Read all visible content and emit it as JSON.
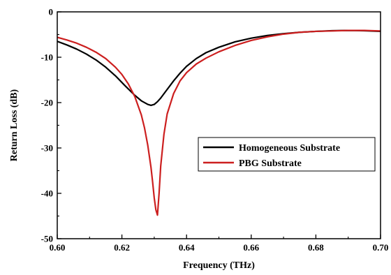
{
  "chart_data": {
    "type": "line",
    "title": "",
    "xlabel": "Frequency (THz)",
    "ylabel": "Return Loss (dB)",
    "xlim": [
      0.6,
      0.7
    ],
    "ylim": [
      -50,
      0
    ],
    "xticks": [
      0.6,
      0.62,
      0.64,
      0.66,
      0.68,
      0.7
    ],
    "xtick_labels": [
      "0.60",
      "0.62",
      "0.64",
      "0.66",
      "0.68",
      "0.70"
    ],
    "yticks": [
      0,
      -10,
      -20,
      -30,
      -40,
      -50
    ],
    "ytick_labels": [
      "0",
      "-10",
      "-20",
      "-30",
      "-40",
      "-50"
    ],
    "grid": false,
    "legend_position": "right",
    "series": [
      {
        "name": "Homogeneous Substrate",
        "color": "#000000",
        "x": [
          0.6,
          0.603,
          0.606,
          0.609,
          0.612,
          0.615,
          0.618,
          0.621,
          0.624,
          0.626,
          0.628,
          0.629,
          0.63,
          0.631,
          0.632,
          0.634,
          0.636,
          0.638,
          0.64,
          0.643,
          0.646,
          0.65,
          0.655,
          0.66,
          0.665,
          0.67,
          0.675,
          0.68,
          0.685,
          0.69,
          0.695,
          0.7
        ],
        "y": [
          -6.5,
          -7.3,
          -8.2,
          -9.3,
          -10.6,
          -12.2,
          -14.1,
          -16.3,
          -18.4,
          -19.6,
          -20.4,
          -20.6,
          -20.4,
          -19.8,
          -19.0,
          -17.1,
          -15.2,
          -13.5,
          -12.0,
          -10.3,
          -9.0,
          -7.8,
          -6.6,
          -5.8,
          -5.2,
          -4.8,
          -4.5,
          -4.3,
          -4.15,
          -4.1,
          -4.15,
          -4.3
        ]
      },
      {
        "name": "PBG Substrate",
        "color": "#cc1f1f",
        "x": [
          0.6,
          0.603,
          0.606,
          0.609,
          0.612,
          0.615,
          0.618,
          0.62,
          0.622,
          0.624,
          0.626,
          0.627,
          0.628,
          0.629,
          0.6295,
          0.63,
          0.6305,
          0.631,
          0.6315,
          0.632,
          0.633,
          0.634,
          0.636,
          0.638,
          0.64,
          0.643,
          0.646,
          0.65,
          0.655,
          0.66,
          0.665,
          0.67,
          0.675,
          0.68,
          0.685,
          0.69,
          0.695,
          0.7
        ],
        "y": [
          -5.6,
          -6.2,
          -6.9,
          -7.8,
          -8.9,
          -10.3,
          -12.2,
          -13.8,
          -15.9,
          -18.7,
          -22.7,
          -25.6,
          -29.4,
          -34.3,
          -37.5,
          -41.0,
          -43.6,
          -44.8,
          -40.0,
          -34.0,
          -27.0,
          -22.5,
          -18.0,
          -15.2,
          -13.4,
          -11.5,
          -10.2,
          -8.8,
          -7.4,
          -6.3,
          -5.5,
          -4.9,
          -4.5,
          -4.3,
          -4.2,
          -4.1,
          -4.1,
          -4.2
        ]
      }
    ]
  }
}
